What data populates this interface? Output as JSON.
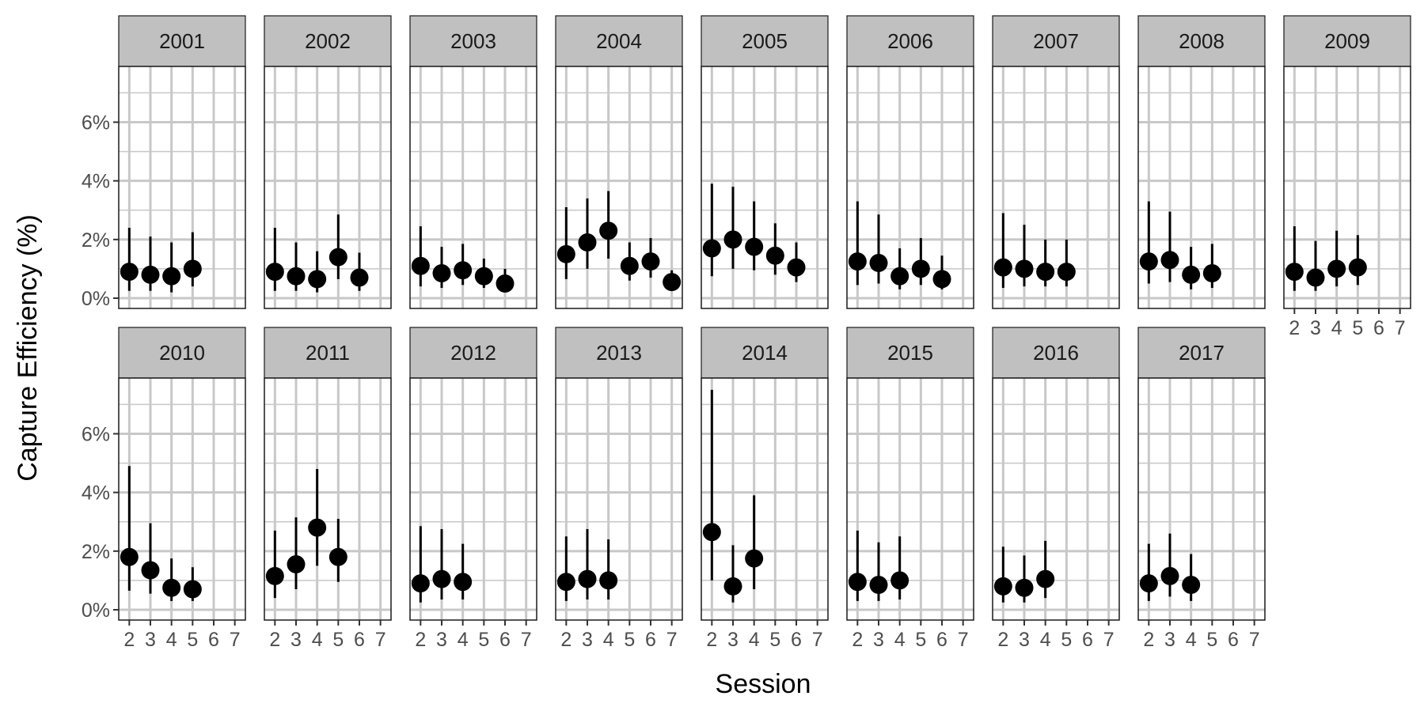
{
  "chart_data": {
    "type": "scatter",
    "subtype": "faceted point-range",
    "xlabel": "Session",
    "ylabel": "Capture Efficiency (%)",
    "x_ticks": [
      2,
      3,
      4,
      5,
      6,
      7
    ],
    "xlim": [
      1.5,
      7.5
    ],
    "y_ticks": [
      {
        "value": 0,
        "label": "0%"
      },
      {
        "value": 2,
        "label": "2%"
      },
      {
        "value": 4,
        "label": "4%"
      },
      {
        "value": 6,
        "label": "6%"
      }
    ],
    "ylim": [
      -0.35,
      7.9
    ],
    "grid": true,
    "point_color": "#000000",
    "strip_fill": "#c0c0c0",
    "grid_color": "#c8c8c8",
    "facets": [
      {
        "label": "2001",
        "points": [
          {
            "x": 2,
            "y": 0.9,
            "lo": 0.25,
            "hi": 2.4
          },
          {
            "x": 3,
            "y": 0.8,
            "lo": 0.25,
            "hi": 2.1
          },
          {
            "x": 4,
            "y": 0.75,
            "lo": 0.2,
            "hi": 1.9
          },
          {
            "x": 5,
            "y": 1.0,
            "lo": 0.4,
            "hi": 2.25
          }
        ]
      },
      {
        "label": "2002",
        "points": [
          {
            "x": 2,
            "y": 0.9,
            "lo": 0.25,
            "hi": 2.4
          },
          {
            "x": 3,
            "y": 0.75,
            "lo": 0.25,
            "hi": 1.9
          },
          {
            "x": 4,
            "y": 0.65,
            "lo": 0.2,
            "hi": 1.6
          },
          {
            "x": 5,
            "y": 1.4,
            "lo": 0.65,
            "hi": 2.85
          },
          {
            "x": 6,
            "y": 0.7,
            "lo": 0.25,
            "hi": 1.55
          }
        ]
      },
      {
        "label": "2003",
        "points": [
          {
            "x": 2,
            "y": 1.1,
            "lo": 0.4,
            "hi": 2.45
          },
          {
            "x": 3,
            "y": 0.85,
            "lo": 0.35,
            "hi": 1.75
          },
          {
            "x": 4,
            "y": 0.95,
            "lo": 0.45,
            "hi": 1.85
          },
          {
            "x": 5,
            "y": 0.75,
            "lo": 0.35,
            "hi": 1.35
          },
          {
            "x": 6,
            "y": 0.5,
            "lo": 0.25,
            "hi": 1.0
          }
        ]
      },
      {
        "label": "2004",
        "points": [
          {
            "x": 2,
            "y": 1.5,
            "lo": 0.65,
            "hi": 3.1
          },
          {
            "x": 3,
            "y": 1.9,
            "lo": 1.0,
            "hi": 3.4
          },
          {
            "x": 4,
            "y": 2.3,
            "lo": 1.35,
            "hi": 3.65
          },
          {
            "x": 5,
            "y": 1.1,
            "lo": 0.6,
            "hi": 1.9
          },
          {
            "x": 6,
            "y": 1.25,
            "lo": 0.7,
            "hi": 2.05
          },
          {
            "x": 7,
            "y": 0.55,
            "lo": 0.3,
            "hi": 0.95
          }
        ]
      },
      {
        "label": "2005",
        "points": [
          {
            "x": 2,
            "y": 1.7,
            "lo": 0.75,
            "hi": 3.9
          },
          {
            "x": 3,
            "y": 2.0,
            "lo": 1.0,
            "hi": 3.8
          },
          {
            "x": 4,
            "y": 1.75,
            "lo": 0.95,
            "hi": 3.3
          },
          {
            "x": 5,
            "y": 1.45,
            "lo": 0.8,
            "hi": 2.55
          },
          {
            "x": 6,
            "y": 1.05,
            "lo": 0.55,
            "hi": 1.9
          }
        ]
      },
      {
        "label": "2006",
        "points": [
          {
            "x": 2,
            "y": 1.25,
            "lo": 0.45,
            "hi": 3.3
          },
          {
            "x": 3,
            "y": 1.2,
            "lo": 0.5,
            "hi": 2.85
          },
          {
            "x": 4,
            "y": 0.75,
            "lo": 0.3,
            "hi": 1.7
          },
          {
            "x": 5,
            "y": 1.0,
            "lo": 0.45,
            "hi": 2.05
          },
          {
            "x": 6,
            "y": 0.65,
            "lo": 0.3,
            "hi": 1.45
          }
        ]
      },
      {
        "label": "2007",
        "points": [
          {
            "x": 2,
            "y": 1.05,
            "lo": 0.35,
            "hi": 2.9
          },
          {
            "x": 3,
            "y": 1.0,
            "lo": 0.4,
            "hi": 2.5
          },
          {
            "x": 4,
            "y": 0.9,
            "lo": 0.4,
            "hi": 2.0
          },
          {
            "x": 5,
            "y": 0.9,
            "lo": 0.4,
            "hi": 2.0
          }
        ]
      },
      {
        "label": "2008",
        "points": [
          {
            "x": 2,
            "y": 1.25,
            "lo": 0.5,
            "hi": 3.3
          },
          {
            "x": 3,
            "y": 1.3,
            "lo": 0.55,
            "hi": 2.95
          },
          {
            "x": 4,
            "y": 0.8,
            "lo": 0.3,
            "hi": 1.75
          },
          {
            "x": 5,
            "y": 0.85,
            "lo": 0.35,
            "hi": 1.85
          }
        ]
      },
      {
        "label": "2009",
        "points": [
          {
            "x": 2,
            "y": 0.9,
            "lo": 0.25,
            "hi": 2.45
          },
          {
            "x": 3,
            "y": 0.7,
            "lo": 0.25,
            "hi": 1.95
          },
          {
            "x": 4,
            "y": 1.0,
            "lo": 0.4,
            "hi": 2.3
          },
          {
            "x": 5,
            "y": 1.05,
            "lo": 0.45,
            "hi": 2.15
          }
        ]
      },
      {
        "label": "2010",
        "points": [
          {
            "x": 2,
            "y": 1.8,
            "lo": 0.65,
            "hi": 4.9
          },
          {
            "x": 3,
            "y": 1.35,
            "lo": 0.55,
            "hi": 2.95
          },
          {
            "x": 4,
            "y": 0.75,
            "lo": 0.3,
            "hi": 1.75
          },
          {
            "x": 5,
            "y": 0.7,
            "lo": 0.3,
            "hi": 1.45
          }
        ]
      },
      {
        "label": "2011",
        "points": [
          {
            "x": 2,
            "y": 1.15,
            "lo": 0.4,
            "hi": 2.7
          },
          {
            "x": 3,
            "y": 1.55,
            "lo": 0.7,
            "hi": 3.15
          },
          {
            "x": 4,
            "y": 2.8,
            "lo": 1.5,
            "hi": 4.8
          },
          {
            "x": 5,
            "y": 1.8,
            "lo": 0.95,
            "hi": 3.1
          }
        ]
      },
      {
        "label": "2012",
        "points": [
          {
            "x": 2,
            "y": 0.9,
            "lo": 0.25,
            "hi": 2.85
          },
          {
            "x": 3,
            "y": 1.05,
            "lo": 0.35,
            "hi": 2.75
          },
          {
            "x": 4,
            "y": 0.95,
            "lo": 0.35,
            "hi": 2.25
          }
        ]
      },
      {
        "label": "2013",
        "points": [
          {
            "x": 2,
            "y": 0.95,
            "lo": 0.3,
            "hi": 2.5
          },
          {
            "x": 3,
            "y": 1.05,
            "lo": 0.35,
            "hi": 2.75
          },
          {
            "x": 4,
            "y": 1.0,
            "lo": 0.35,
            "hi": 2.4
          }
        ]
      },
      {
        "label": "2014",
        "points": [
          {
            "x": 2,
            "y": 2.65,
            "lo": 1.0,
            "hi": 7.5
          },
          {
            "x": 3,
            "y": 0.8,
            "lo": 0.25,
            "hi": 2.2
          },
          {
            "x": 4,
            "y": 1.75,
            "lo": 0.7,
            "hi": 3.9
          }
        ]
      },
      {
        "label": "2015",
        "points": [
          {
            "x": 2,
            "y": 0.95,
            "lo": 0.3,
            "hi": 2.7
          },
          {
            "x": 3,
            "y": 0.85,
            "lo": 0.3,
            "hi": 2.3
          },
          {
            "x": 4,
            "y": 1.0,
            "lo": 0.35,
            "hi": 2.5
          }
        ]
      },
      {
        "label": "2016",
        "points": [
          {
            "x": 2,
            "y": 0.8,
            "lo": 0.25,
            "hi": 2.15
          },
          {
            "x": 3,
            "y": 0.75,
            "lo": 0.25,
            "hi": 1.85
          },
          {
            "x": 4,
            "y": 1.05,
            "lo": 0.4,
            "hi": 2.35
          }
        ]
      },
      {
        "label": "2017",
        "points": [
          {
            "x": 2,
            "y": 0.9,
            "lo": 0.3,
            "hi": 2.25
          },
          {
            "x": 3,
            "y": 1.15,
            "lo": 0.45,
            "hi": 2.6
          },
          {
            "x": 4,
            "y": 0.85,
            "lo": 0.3,
            "hi": 1.9
          }
        ]
      }
    ]
  }
}
